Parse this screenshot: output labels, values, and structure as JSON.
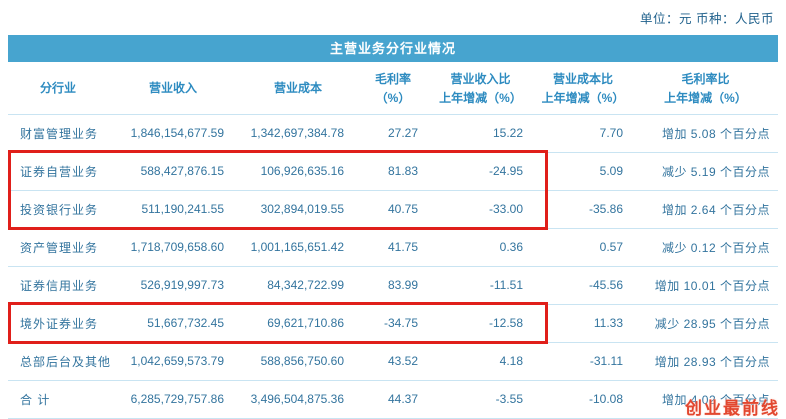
{
  "meta": {
    "unit_label": "单位：元  币种：人民币"
  },
  "colors": {
    "title-bg": "#47a4cf",
    "header-text": "#2d8bc0",
    "body-text": "#33749e",
    "row-border": "#c9e4f2",
    "highlight": "#e01f1a",
    "watermark": "#e2472f"
  },
  "table": {
    "title": "主营业务分行业情况",
    "columns": [
      {
        "label": "分行业",
        "label2": ""
      },
      {
        "label": "营业收入",
        "label2": ""
      },
      {
        "label": "营业成本",
        "label2": ""
      },
      {
        "label": "毛利率",
        "label2": "（%）"
      },
      {
        "label": "营业收入比",
        "label2": "上年增减（%）"
      },
      {
        "label": "营业成本比",
        "label2": "上年增减（%）"
      },
      {
        "label": "毛利率比",
        "label2": "上年增减（%）"
      }
    ],
    "rows": [
      {
        "industry": "财富管理业务",
        "revenue": "1,846,154,677.59",
        "cost": "1,342,697,384.78",
        "margin": "27.27",
        "rev_change": "15.22",
        "cost_change": "7.70",
        "margin_change": "增加 5.08 个百分点"
      },
      {
        "industry": "证券自营业务",
        "revenue": "588,427,876.15",
        "cost": "106,926,635.16",
        "margin": "81.83",
        "rev_change": "-24.95",
        "cost_change": "5.09",
        "margin_change": "减少 5.19 个百分点"
      },
      {
        "industry": "投资银行业务",
        "revenue": "511,190,241.55",
        "cost": "302,894,019.55",
        "margin": "40.75",
        "rev_change": "-33.00",
        "cost_change": "-35.86",
        "margin_change": "增加 2.64 个百分点"
      },
      {
        "industry": "资产管理业务",
        "revenue": "1,718,709,658.60",
        "cost": "1,001,165,651.42",
        "margin": "41.75",
        "rev_change": "0.36",
        "cost_change": "0.57",
        "margin_change": "减少 0.12 个百分点"
      },
      {
        "industry": "证券信用业务",
        "revenue": "526,919,997.73",
        "cost": "84,342,722.99",
        "margin": "83.99",
        "rev_change": "-11.51",
        "cost_change": "-45.56",
        "margin_change": "增加 10.01 个百分点"
      },
      {
        "industry": "境外证券业务",
        "revenue": "51,667,732.45",
        "cost": "69,621,710.86",
        "margin": "-34.75",
        "rev_change": "-12.58",
        "cost_change": "11.33",
        "margin_change": "减少 28.95 个百分点"
      },
      {
        "industry": "总部后台及其他",
        "revenue": "1,042,659,573.79",
        "cost": "588,856,750.60",
        "margin": "43.52",
        "rev_change": "4.18",
        "cost_change": "-31.11",
        "margin_change": "增加 28.93 个百分点"
      },
      {
        "industry": "合  计",
        "revenue": "6,285,729,757.86",
        "cost": "3,496,504,875.36",
        "margin": "44.37",
        "rev_change": "-3.55",
        "cost_change": "-10.08",
        "margin_change": "增加 4.02 个百分点"
      }
    ],
    "highlights": [
      {
        "rows": [
          1,
          2
        ]
      },
      {
        "rows": [
          5
        ]
      }
    ]
  },
  "watermark": "创业最前线"
}
